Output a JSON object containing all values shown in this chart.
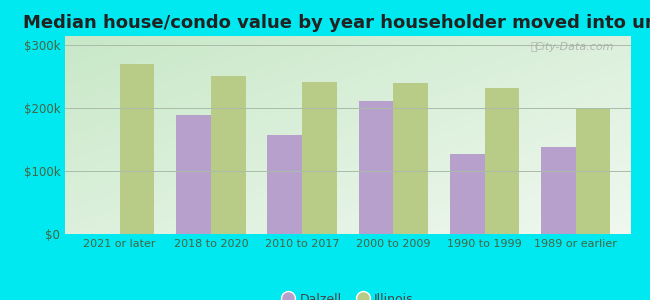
{
  "categories": [
    "2021 or later",
    "2018 to 2020",
    "2010 to 2017",
    "2000 to 2009",
    "1990 to 1999",
    "1989 or earlier"
  ],
  "dalzell_values": [
    0,
    190000,
    158000,
    212000,
    128000,
    138000
  ],
  "illinois_values": [
    270000,
    252000,
    242000,
    240000,
    232000,
    200000
  ],
  "dalzell_color": "#b8a0cc",
  "illinois_color": "#b8cc88",
  "title": "Median house/condo value by year householder moved into unit",
  "ylabel_ticks": [
    "$0",
    "$100k",
    "$200k",
    "$300k"
  ],
  "ytick_values": [
    0,
    100000,
    200000,
    300000
  ],
  "ylim": [
    0,
    315000
  ],
  "background_outer": "#00e8f0",
  "background_inner_tl": "#c8e8c8",
  "background_inner_br": "#f0f8f0",
  "legend_dalzell": "Dalzell",
  "legend_illinois": "Illinois",
  "bar_width": 0.38,
  "title_fontsize": 13,
  "watermark_text": "City-Data.com"
}
